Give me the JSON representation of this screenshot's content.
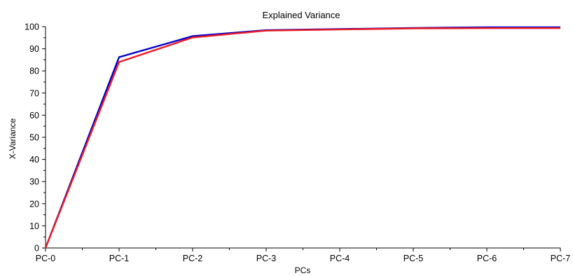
{
  "chart_data": {
    "type": "line",
    "title": "Explained Variance",
    "xlabel": "PCs",
    "ylabel": "X-Variance",
    "categories": [
      "PC-0",
      "PC-1",
      "PC-2",
      "PC-3",
      "PC-4",
      "PC-5",
      "PC-6",
      "PC-7"
    ],
    "ylim": [
      0,
      100
    ],
    "yticks": [
      "0",
      "10",
      "20",
      "30",
      "40",
      "50",
      "60",
      "70",
      "80",
      "90",
      "100"
    ],
    "grid": false,
    "legend": "none",
    "series": [
      {
        "color": "#0000cc",
        "values": [
          0,
          86.2,
          95.7,
          98.4,
          98.9,
          99.4,
          99.7,
          99.7
        ]
      },
      {
        "color": "#ee1c24",
        "values": [
          0,
          84.0,
          95.1,
          98.2,
          98.7,
          99.2,
          99.3,
          99.3
        ]
      }
    ]
  }
}
